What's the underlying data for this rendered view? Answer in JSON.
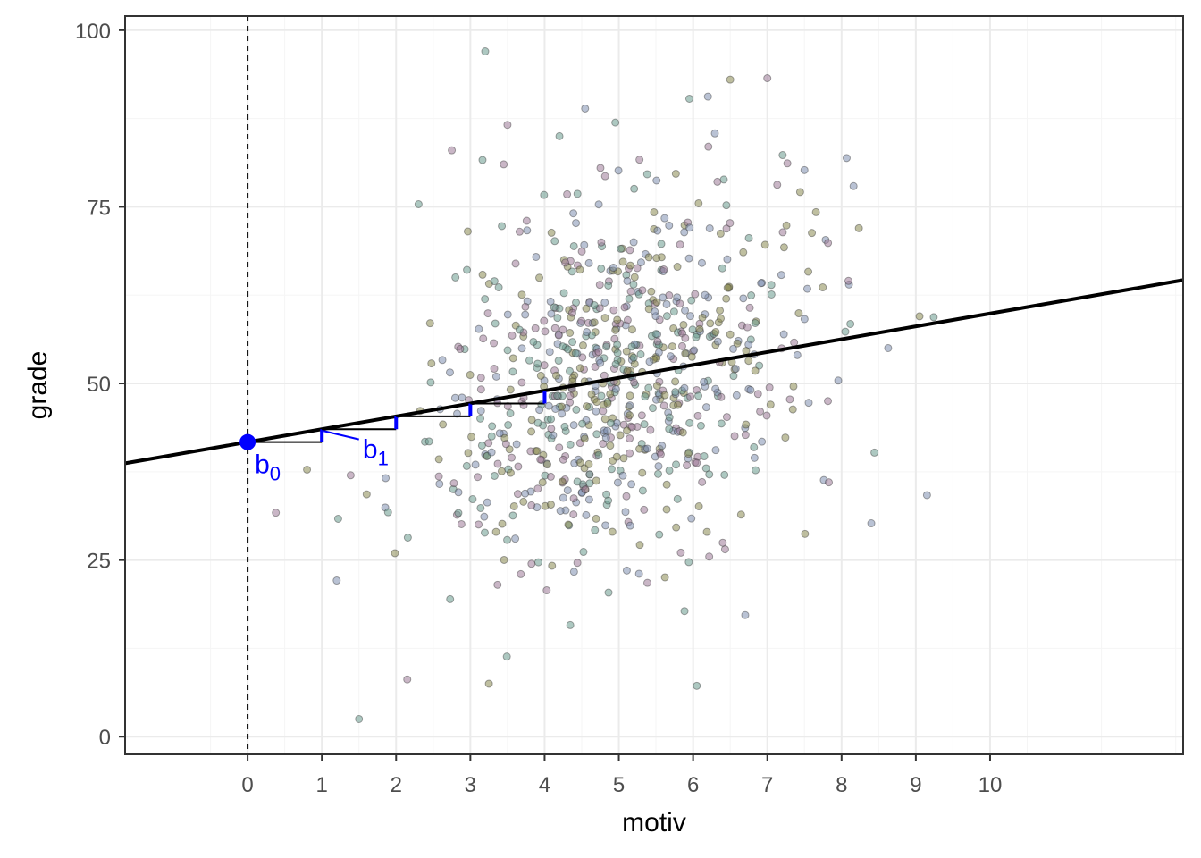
{
  "chart_data": {
    "type": "scatter",
    "title": "",
    "xlabel": "motiv",
    "ylabel": "grade",
    "xlim": [
      -1.65,
      12.6
    ],
    "ylim": [
      -2.5,
      102
    ],
    "x_ticks": [
      0,
      1,
      2,
      3,
      4,
      5,
      6,
      7,
      8,
      9,
      10
    ],
    "y_ticks": [
      0,
      25,
      50,
      75,
      100
    ],
    "grid": true,
    "legend": "none",
    "regression_line": {
      "intercept": 41.7,
      "slope": 1.82
    },
    "zero_line_x": 0,
    "intercept_point": {
      "x": 0,
      "y": 41.7,
      "label": "b",
      "label_sub": "0"
    },
    "slope_label": {
      "label": "b",
      "label_sub": "1"
    },
    "slope_steps": [
      0,
      1,
      2,
      3
    ],
    "point_count": 800,
    "points_sample": [
      [
        3.2,
        97
      ],
      [
        7.0,
        93.2
      ],
      [
        6.5,
        93
      ],
      [
        6.2,
        90.6
      ],
      [
        5.95,
        90.3
      ],
      [
        3.5,
        86.6
      ],
      [
        9.05,
        59.5
      ],
      [
        8.4,
        30.2
      ],
      [
        1.5,
        2.5
      ],
      [
        0.38,
        31.7
      ],
      [
        0.8,
        37.8
      ],
      [
        1.2,
        22.1
      ],
      [
        6.05,
        7.2
      ],
      [
        2.15,
        8.1
      ],
      [
        3.25,
        7.5
      ],
      [
        7.5,
        80.2
      ],
      [
        4.2,
        85
      ],
      [
        2.75,
        83
      ],
      [
        7.6,
        71.3
      ],
      [
        8.1,
        64
      ]
    ],
    "colors": {
      "line": "#000000",
      "annotation": "#0000ff",
      "grid_major": "#ebebeb",
      "grid_minor": "#f5f5f5",
      "panel_border": "#333333",
      "points": [
        "#6a9a8e",
        "#9c7a98",
        "#8a8a52",
        "#7f8fb0"
      ]
    }
  }
}
